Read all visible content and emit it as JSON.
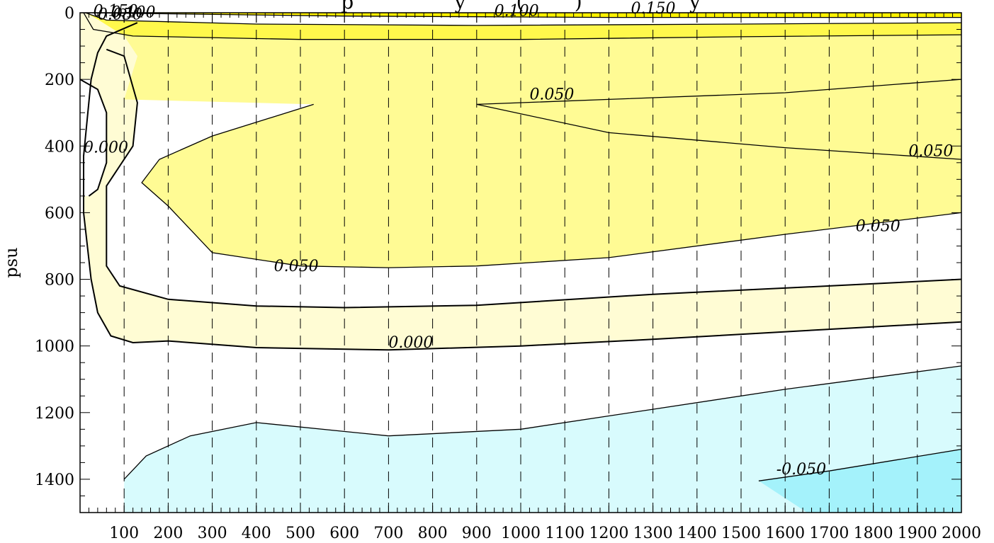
{
  "chart_data": {
    "type": "contour",
    "title_fragment": "p                y        (        )                 y",
    "ylabel": "psu",
    "xlabel": "",
    "xlim": [
      0,
      2000
    ],
    "ylim": [
      1500,
      0
    ],
    "x_ticks": [
      "100",
      "200",
      "300",
      "400",
      "500",
      "600",
      "700",
      "800",
      "900",
      "1000",
      "1100",
      "1200",
      "1300",
      "1400",
      "1500",
      "1600",
      "1700",
      "1800",
      "1900",
      "2000"
    ],
    "y_ticks": [
      "0",
      "200",
      "400",
      "600",
      "800",
      "1000",
      "1200",
      "1400"
    ],
    "y_tick_values": [
      0,
      200,
      400,
      600,
      800,
      1000,
      1200,
      1400
    ],
    "levels": [
      -0.05,
      0.0,
      0.05,
      0.1,
      0.15
    ],
    "level_colors": {
      "-0.100": "#a4f2fb",
      "-0.050": "#d8fbfd",
      "0.000": "#ffffff",
      "0.000_to_0.050": "#fffcd4",
      "0.050_to_0.100": "#fffb94",
      "0.100_to_0.150": "#fff84c",
      "above_0.150": "#fff200"
    },
    "contour_labels": [
      {
        "text": "0.150",
        "x": 30,
        "y": 10
      },
      {
        "text": "0.100",
        "x": 70,
        "y": 14
      },
      {
        "text": "0.050",
        "x": 40,
        "y": 20
      },
      {
        "text": "0.100",
        "x": 940,
        "y": 10
      },
      {
        "text": "0.150",
        "x": 1250,
        "y": 2
      },
      {
        "text": "0.050",
        "x": 1020,
        "y": 260
      },
      {
        "text": "0.050",
        "x": 1880,
        "y": 430
      },
      {
        "text": "0.000",
        "x": 8,
        "y": 420
      },
      {
        "text": "0.050",
        "x": 1760,
        "y": 655
      },
      {
        "text": "0.050",
        "x": 440,
        "y": 775
      },
      {
        "text": "0.000",
        "x": 700,
        "y": 1005
      },
      {
        "text": "-0.050",
        "x": 1580,
        "y": 1385
      }
    ],
    "contours": [
      {
        "level": 0.15,
        "points": [
          [
            2,
            0
          ],
          [
            600,
            10
          ],
          [
            1200,
            14
          ],
          [
            1800,
            14
          ],
          [
            2000,
            14
          ]
        ]
      },
      {
        "level": 0.1,
        "points": [
          [
            12,
            0
          ],
          [
            60,
            22
          ],
          [
            400,
            34
          ],
          [
            900,
            38
          ],
          [
            1500,
            34
          ],
          [
            2000,
            30
          ]
        ]
      },
      {
        "level": 0.05,
        "points": [
          [
            8,
            0
          ],
          [
            30,
            50
          ],
          [
            120,
            70
          ],
          [
            500,
            80
          ],
          [
            1000,
            80
          ],
          [
            1500,
            72
          ],
          [
            2000,
            66
          ]
        ]
      },
      {
        "level": 0.05,
        "points": [
          [
            2000,
            200
          ],
          [
            1600,
            240
          ],
          [
            1200,
            260
          ],
          [
            900,
            275
          ],
          [
            1200,
            360
          ],
          [
            1600,
            405
          ],
          [
            2000,
            440
          ]
        ]
      },
      {
        "level": 0.05,
        "points": [
          [
            530,
            275
          ],
          [
            300,
            370
          ],
          [
            180,
            440
          ],
          [
            140,
            510
          ],
          [
            200,
            580
          ],
          [
            300,
            720
          ],
          [
            500,
            760
          ],
          [
            700,
            765
          ],
          [
            900,
            760
          ],
          [
            1200,
            735
          ],
          [
            1600,
            665
          ],
          [
            2000,
            600
          ]
        ]
      },
      {
        "level": 0.0,
        "points": [
          [
            130,
            30
          ],
          [
            60,
            70
          ],
          [
            40,
            120
          ],
          [
            25,
            200
          ],
          [
            8,
            430
          ],
          [
            8,
            600
          ],
          [
            25,
            800
          ],
          [
            40,
            900
          ],
          [
            70,
            970
          ],
          [
            120,
            990
          ],
          [
            200,
            985
          ],
          [
            400,
            1005
          ],
          [
            700,
            1012
          ],
          [
            1000,
            1000
          ],
          [
            1300,
            980
          ],
          [
            1700,
            950
          ],
          [
            2000,
            928
          ]
        ]
      },
      {
        "level": 0.0,
        "points": [
          [
            2000,
            800
          ],
          [
            1700,
            820
          ],
          [
            1300,
            845
          ],
          [
            900,
            878
          ],
          [
            600,
            885
          ],
          [
            400,
            880
          ],
          [
            200,
            860
          ],
          [
            90,
            820
          ],
          [
            60,
            760
          ],
          [
            60,
            520
          ],
          [
            120,
            400
          ],
          [
            130,
            270
          ],
          [
            100,
            130
          ],
          [
            60,
            110
          ]
        ]
      },
      {
        "level": 0.0,
        "points": [
          [
            0,
            200
          ],
          [
            40,
            230
          ],
          [
            60,
            300
          ],
          [
            60,
            450
          ],
          [
            40,
            530
          ],
          [
            20,
            550
          ]
        ]
      },
      {
        "level": -0.05,
        "points": [
          [
            100,
            1400
          ],
          [
            150,
            1330
          ],
          [
            250,
            1270
          ],
          [
            400,
            1230
          ],
          [
            700,
            1270
          ],
          [
            1000,
            1250
          ],
          [
            1300,
            1190
          ],
          [
            1600,
            1130
          ],
          [
            2000,
            1060
          ]
        ]
      },
      {
        "level": -0.1,
        "points": [
          [
            1540,
            1405
          ],
          [
            1700,
            1375
          ],
          [
            2000,
            1310
          ]
        ]
      }
    ]
  }
}
